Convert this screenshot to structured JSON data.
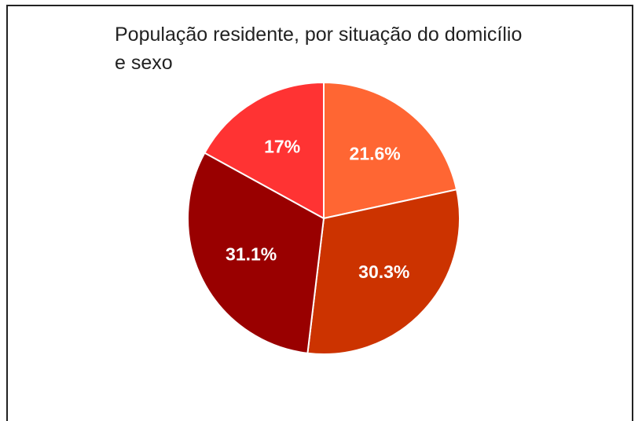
{
  "chart_data": {
    "type": "pie",
    "title": "População residente, por situação do domicílio e sexo",
    "values": [
      21.6,
      30.3,
      31.1,
      17
    ],
    "value_labels": [
      "21.6%",
      "30.3%",
      "31.1%",
      "17%"
    ],
    "colors": [
      "#ff6633",
      "#cc3300",
      "#990000",
      "#ff3333"
    ]
  }
}
